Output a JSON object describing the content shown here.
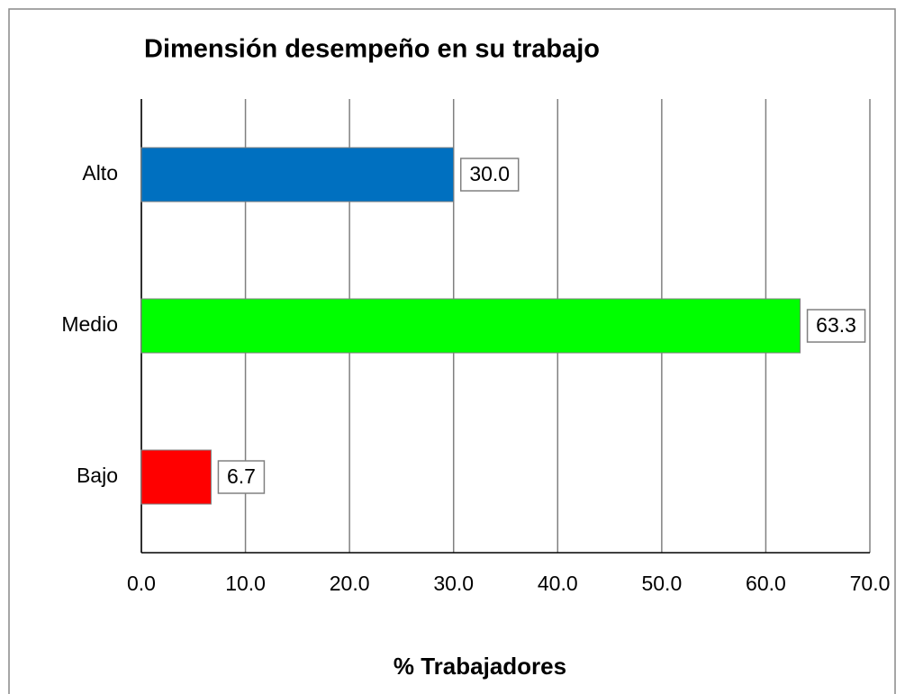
{
  "chart_data": {
    "type": "bar",
    "orientation": "horizontal",
    "title": "Dimensión desempeño en su trabajo",
    "x_label": "% Trabajadores",
    "categories": [
      "Alto",
      "Medio",
      "Bajo"
    ],
    "values": [
      30.0,
      63.3,
      6.7
    ],
    "value_labels": [
      "30.0",
      "63.3",
      "6.7"
    ],
    "colors": [
      "#0070c0",
      "#00ff00",
      "#ff0000"
    ],
    "xlim": [
      0,
      70
    ],
    "xticks": [
      {
        "value": 0,
        "label": "0.0"
      },
      {
        "value": 10,
        "label": "10.0"
      },
      {
        "value": 20,
        "label": "20.0"
      },
      {
        "value": 30,
        "label": "30.0"
      },
      {
        "value": 40,
        "label": "40.0"
      },
      {
        "value": 50,
        "label": "50.0"
      },
      {
        "value": 60,
        "label": "60.0"
      },
      {
        "value": 70,
        "label": "70.0"
      }
    ],
    "grid": true
  }
}
